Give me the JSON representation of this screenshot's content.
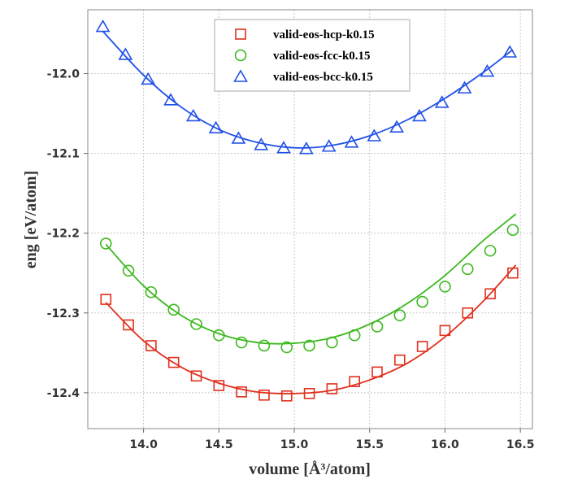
{
  "chart_data": {
    "type": "scatter",
    "xlabel": "volume [Å³/atom]",
    "ylabel": "eng [eV/atom]",
    "xlim": [
      13.63,
      16.58
    ],
    "ylim": [
      -12.445,
      -11.92
    ],
    "xticks": [
      14.0,
      14.5,
      15.0,
      15.5,
      16.0,
      16.5
    ],
    "xtick_labels": [
      "14.0",
      "14.5",
      "15.0",
      "15.5",
      "16.0",
      "16.5"
    ],
    "yticks": [
      -12.4,
      -12.3,
      -12.2,
      -12.1,
      -12.0
    ],
    "ytick_labels": [
      "-12.4",
      "-12.3",
      "-12.2",
      "-12.1",
      "-12.0"
    ],
    "grid": true,
    "legend_position": "top-center",
    "series": [
      {
        "name": "valid-eos-hcp-k0.15",
        "marker": "square",
        "color": "#e0301e",
        "x": [
          13.75,
          13.9,
          14.05,
          14.2,
          14.35,
          14.5,
          14.65,
          14.8,
          14.95,
          15.1,
          15.25,
          15.4,
          15.55,
          15.7,
          15.85,
          16.0,
          16.15,
          16.3,
          16.45
        ],
        "y": [
          -12.283,
          -12.315,
          -12.341,
          -12.362,
          -12.379,
          -12.391,
          -12.399,
          -12.403,
          -12.404,
          -12.401,
          -12.395,
          -12.386,
          -12.374,
          -12.359,
          -12.342,
          -12.322,
          -12.3,
          -12.276,
          -12.25
        ],
        "fit_x": [
          13.75,
          14.0,
          14.25,
          14.5,
          14.75,
          15.0,
          15.25,
          15.5,
          15.75,
          16.0,
          16.25,
          16.47
        ],
        "fit_y": [
          -12.287,
          -12.335,
          -12.368,
          -12.388,
          -12.399,
          -12.401,
          -12.397,
          -12.384,
          -12.363,
          -12.33,
          -12.286,
          -12.24
        ]
      },
      {
        "name": "valid-eos-fcc-k0.15",
        "marker": "circle",
        "color": "#3cb81e",
        "x": [
          13.75,
          13.9,
          14.05,
          14.2,
          14.35,
          14.5,
          14.65,
          14.8,
          14.95,
          15.1,
          15.25,
          15.4,
          15.55,
          15.7,
          15.85,
          16.0,
          16.15,
          16.3,
          16.45
        ],
        "y": [
          -12.213,
          -12.247,
          -12.274,
          -12.296,
          -12.314,
          -12.328,
          -12.337,
          -12.341,
          -12.343,
          -12.341,
          -12.337,
          -12.328,
          -12.317,
          -12.303,
          -12.286,
          -12.267,
          -12.245,
          -12.222,
          -12.196
        ],
        "fit_x": [
          13.75,
          14.0,
          14.25,
          14.5,
          14.75,
          15.0,
          15.25,
          15.5,
          15.75,
          16.0,
          16.25,
          16.47
        ],
        "fit_y": [
          -12.214,
          -12.266,
          -12.303,
          -12.326,
          -12.337,
          -12.338,
          -12.331,
          -12.314,
          -12.288,
          -12.253,
          -12.21,
          -12.176
        ]
      },
      {
        "name": "valid-eos-bcc-k0.15",
        "marker": "triangle",
        "color": "#2050e8",
        "x": [
          13.73,
          13.88,
          14.03,
          14.18,
          14.33,
          14.48,
          14.63,
          14.78,
          14.93,
          15.08,
          15.23,
          15.38,
          15.53,
          15.68,
          15.83,
          15.98,
          16.13,
          16.28,
          16.43
        ],
        "y": [
          -11.941,
          -11.976,
          -12.007,
          -12.033,
          -12.053,
          -12.068,
          -12.081,
          -12.089,
          -12.093,
          -12.094,
          -12.091,
          -12.086,
          -12.078,
          -12.067,
          -12.053,
          -12.036,
          -12.018,
          -11.997,
          -11.973
        ],
        "fit_x": [
          13.73,
          14.0,
          14.25,
          14.5,
          14.75,
          15.0,
          15.25,
          15.5,
          15.75,
          16.0,
          16.25,
          16.45
        ],
        "fit_y": [
          -11.947,
          -12.002,
          -12.042,
          -12.07,
          -12.086,
          -12.093,
          -12.09,
          -12.078,
          -12.058,
          -12.031,
          -11.999,
          -11.97
        ]
      }
    ]
  }
}
